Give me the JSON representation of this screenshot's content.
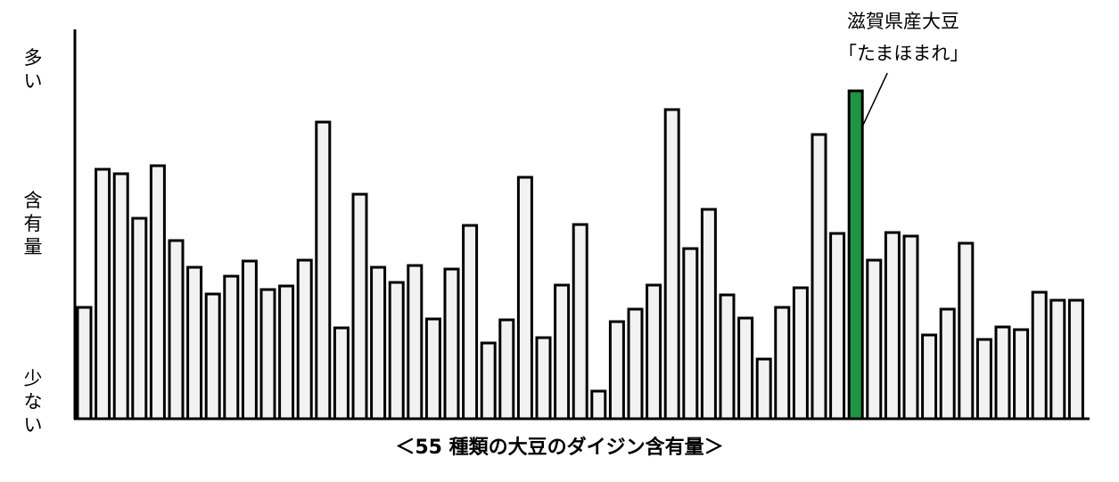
{
  "chart_data": {
    "type": "bar",
    "title": "＜55 種類の大豆のダイジン含有量＞",
    "ylabel_top": "多い",
    "ylabel_mid": "含有量",
    "ylabel_bottom": "少ない",
    "y_scale": "relative (no numeric ticks)",
    "ylim": [
      0,
      435
    ],
    "values": [
      125,
      280,
      275,
      225,
      284,
      200,
      170,
      140,
      160,
      177,
      145,
      149,
      178,
      333,
      102,
      252,
      170,
      153,
      172,
      112,
      168,
      217,
      85,
      111,
      271,
      91,
      150,
      218,
      31,
      109,
      123,
      150,
      347,
      191,
      235,
      139,
      113,
      67,
      125,
      147,
      319,
      208,
      368,
      178,
      209,
      205,
      94,
      123,
      197,
      89,
      103,
      100,
      142,
      133,
      133
    ],
    "highlight_index": 42,
    "colors": {
      "bar": "#f2f2f2",
      "highlight": "#1e9641",
      "outline": "#000000"
    },
    "annotation": {
      "line1": "滋賀県産大豆",
      "line2": "「たまほまれ」"
    },
    "grid": false
  }
}
